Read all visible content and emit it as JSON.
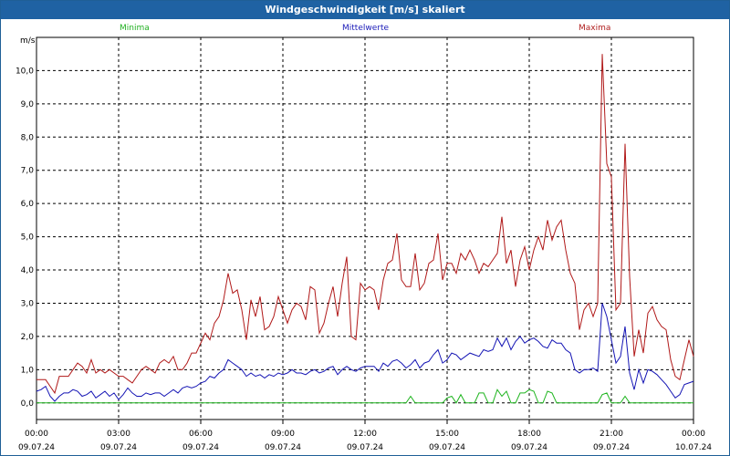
{
  "window": {
    "title": "Windgeschwindigkeit [m/s] skaliert"
  },
  "chart_data": {
    "type": "line",
    "title": "Windgeschwindigkeit [m/s] skaliert",
    "ylabel": "m/s",
    "xlabel": "",
    "ylim": [
      -0.5,
      11.0
    ],
    "xlim_hours": [
      0,
      24
    ],
    "y_ticks": [
      "0,0",
      "1,0",
      "2,0",
      "3,0",
      "4,0",
      "5,0",
      "6,0",
      "7,0",
      "8,0",
      "9,0",
      "10,0"
    ],
    "x_ticks": [
      {
        "time": "00:00",
        "date": "09.07.24"
      },
      {
        "time": "03:00",
        "date": "09.07.24"
      },
      {
        "time": "06:00",
        "date": "09.07.24"
      },
      {
        "time": "09:00",
        "date": "09.07.24"
      },
      {
        "time": "12:00",
        "date": "09.07.24"
      },
      {
        "time": "15:00",
        "date": "09.07.24"
      },
      {
        "time": "18:00",
        "date": "09.07.24"
      },
      {
        "time": "21:00",
        "date": "09.07.24"
      },
      {
        "time": "00:00",
        "date": "10.07.24"
      }
    ],
    "grid": true,
    "interval_minutes": 10,
    "series": [
      {
        "name": "Maxima",
        "color": "#b01818",
        "values": [
          0.7,
          0.7,
          0.7,
          0.5,
          0.3,
          0.8,
          0.8,
          0.8,
          1.0,
          1.2,
          1.1,
          0.9,
          1.3,
          0.9,
          1.0,
          0.9,
          1.0,
          0.9,
          0.8,
          0.8,
          0.7,
          0.6,
          0.8,
          1.0,
          1.1,
          1.0,
          0.9,
          1.2,
          1.3,
          1.2,
          1.4,
          1.0,
          1.0,
          1.2,
          1.5,
          1.5,
          1.8,
          2.1,
          1.9,
          2.4,
          2.6,
          3.1,
          3.9,
          3.3,
          3.4,
          2.8,
          1.9,
          3.1,
          2.6,
          3.2,
          2.2,
          2.3,
          2.6,
          3.2,
          2.8,
          2.4,
          2.8,
          3.0,
          2.9,
          2.5,
          3.5,
          3.4,
          2.1,
          2.4,
          3.0,
          3.5,
          2.6,
          3.6,
          4.4,
          2.0,
          1.9,
          3.6,
          3.4,
          3.5,
          3.4,
          2.8,
          3.7,
          4.2,
          4.3,
          5.1,
          3.7,
          3.5,
          3.5,
          4.5,
          3.4,
          3.6,
          4.2,
          4.3,
          5.1,
          3.7,
          4.2,
          4.2,
          3.9,
          4.5,
          4.3,
          4.6,
          4.3,
          3.9,
          4.2,
          4.1,
          4.3,
          4.5,
          5.6,
          4.2,
          4.6,
          3.5,
          4.3,
          4.7,
          4.0,
          4.6,
          5.0,
          4.6,
          5.5,
          4.9,
          5.3,
          5.5,
          4.6,
          3.9,
          3.6,
          2.2,
          2.8,
          3.0,
          2.6,
          3.0,
          10.5,
          7.2,
          6.8,
          2.8,
          3.0,
          7.8,
          3.8,
          1.4,
          2.2,
          1.5,
          2.7,
          2.9,
          2.5,
          2.3,
          2.2,
          1.3,
          0.8,
          0.7,
          1.3,
          1.9,
          1.4
        ]
      },
      {
        "name": "Mittelwerte",
        "color": "#1414b4",
        "values": [
          0.35,
          0.4,
          0.5,
          0.2,
          0.05,
          0.2,
          0.3,
          0.3,
          0.4,
          0.35,
          0.2,
          0.25,
          0.35,
          0.15,
          0.25,
          0.35,
          0.2,
          0.3,
          0.1,
          0.25,
          0.45,
          0.3,
          0.2,
          0.2,
          0.3,
          0.25,
          0.3,
          0.3,
          0.2,
          0.3,
          0.4,
          0.3,
          0.45,
          0.5,
          0.45,
          0.5,
          0.6,
          0.65,
          0.8,
          0.75,
          0.9,
          1.0,
          1.3,
          1.2,
          1.1,
          1.0,
          0.8,
          0.9,
          0.8,
          0.85,
          0.75,
          0.85,
          0.8,
          0.9,
          0.85,
          0.9,
          1.0,
          0.9,
          0.9,
          0.85,
          0.95,
          1.0,
          0.9,
          0.95,
          1.05,
          1.1,
          0.85,
          1.0,
          1.1,
          1.0,
          0.95,
          1.05,
          1.1,
          1.1,
          1.1,
          0.95,
          1.2,
          1.1,
          1.25,
          1.3,
          1.2,
          1.05,
          1.15,
          1.3,
          1.05,
          1.2,
          1.25,
          1.45,
          1.6,
          1.2,
          1.3,
          1.5,
          1.45,
          1.3,
          1.4,
          1.5,
          1.45,
          1.4,
          1.6,
          1.55,
          1.6,
          1.95,
          1.7,
          1.95,
          1.6,
          1.85,
          2.0,
          1.8,
          1.9,
          1.95,
          1.85,
          1.7,
          1.65,
          1.9,
          1.8,
          1.8,
          1.6,
          1.5,
          1.0,
          0.9,
          1.0,
          1.0,
          1.05,
          0.95,
          3.0,
          2.6,
          1.9,
          1.2,
          1.4,
          2.3,
          0.9,
          0.4,
          1.0,
          0.6,
          1.0,
          0.95,
          0.85,
          0.7,
          0.55,
          0.35,
          0.15,
          0.25,
          0.55,
          0.6,
          0.65
        ]
      },
      {
        "name": "Minima",
        "color": "#1cb41c",
        "values": [
          0,
          0,
          0,
          0,
          0,
          0,
          0,
          0,
          0,
          0,
          0,
          0,
          0,
          0,
          0,
          0,
          0,
          0,
          0,
          0,
          0,
          0,
          0,
          0,
          0,
          0,
          0,
          0,
          0,
          0,
          0,
          0,
          0,
          0,
          0,
          0,
          0,
          0,
          0,
          0,
          0,
          0,
          0,
          0,
          0,
          0,
          0,
          0,
          0,
          0,
          0,
          0,
          0,
          0,
          0,
          0,
          0,
          0,
          0,
          0,
          0,
          0,
          0,
          0,
          0,
          0,
          0,
          0,
          0,
          0,
          0,
          0,
          0,
          0,
          0,
          0,
          0,
          0,
          0,
          0,
          0,
          0,
          0.2,
          0,
          0,
          0,
          0,
          0,
          0,
          0,
          0.15,
          0.2,
          0,
          0.25,
          0,
          0,
          0,
          0.3,
          0.3,
          0,
          0,
          0.4,
          0.2,
          0.35,
          0,
          0,
          0.3,
          0.3,
          0.4,
          0.35,
          0,
          0,
          0.35,
          0.3,
          0,
          0,
          0,
          0,
          0,
          0,
          0,
          0,
          0,
          0,
          0.25,
          0.3,
          0,
          0,
          0,
          0.2,
          0,
          0,
          0,
          0,
          0,
          0,
          0,
          0,
          0,
          0,
          0,
          0,
          0,
          0,
          0
        ]
      }
    ]
  }
}
